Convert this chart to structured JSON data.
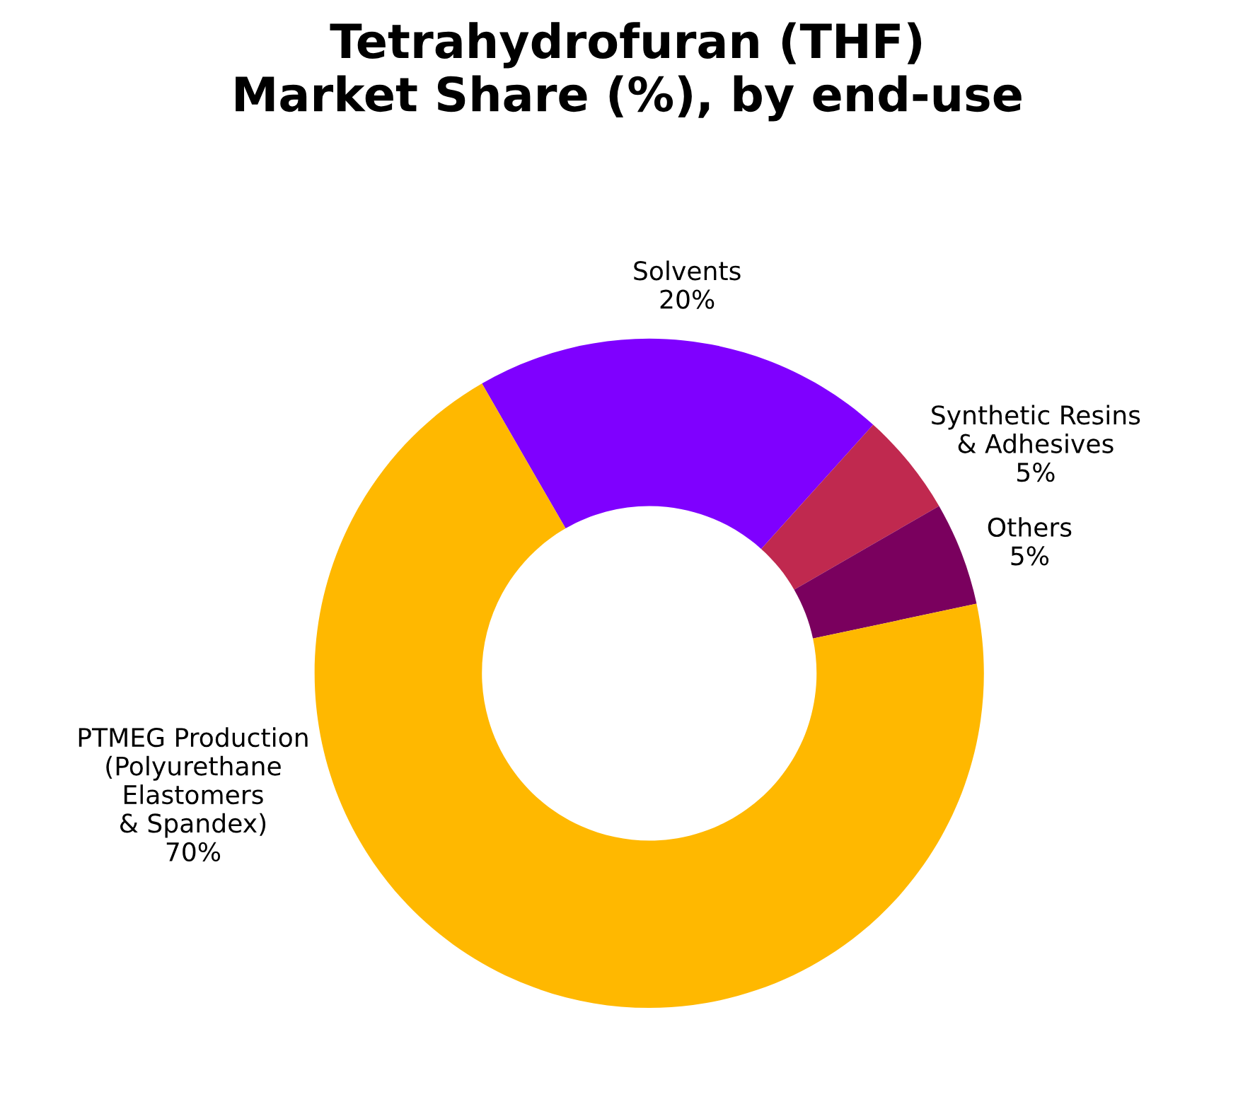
{
  "chart_data": {
    "type": "donut",
    "title": "Tetrahydrofuran (THF)\nMarket Share (%), by end-use",
    "categories": [
      "Solvents",
      "Synthetic Resins\n& Adhesives",
      "Others",
      "PTMEG Production\n(Polyurethane\nElastomers\n& Spandex)"
    ],
    "values": [
      20,
      5,
      5,
      70
    ],
    "colors": [
      "#7f00ff",
      "#c0294f",
      "#7a005e",
      "#ffb800"
    ],
    "value_labels": [
      "20%",
      "5%",
      "5%",
      "70%"
    ],
    "legend": false
  }
}
